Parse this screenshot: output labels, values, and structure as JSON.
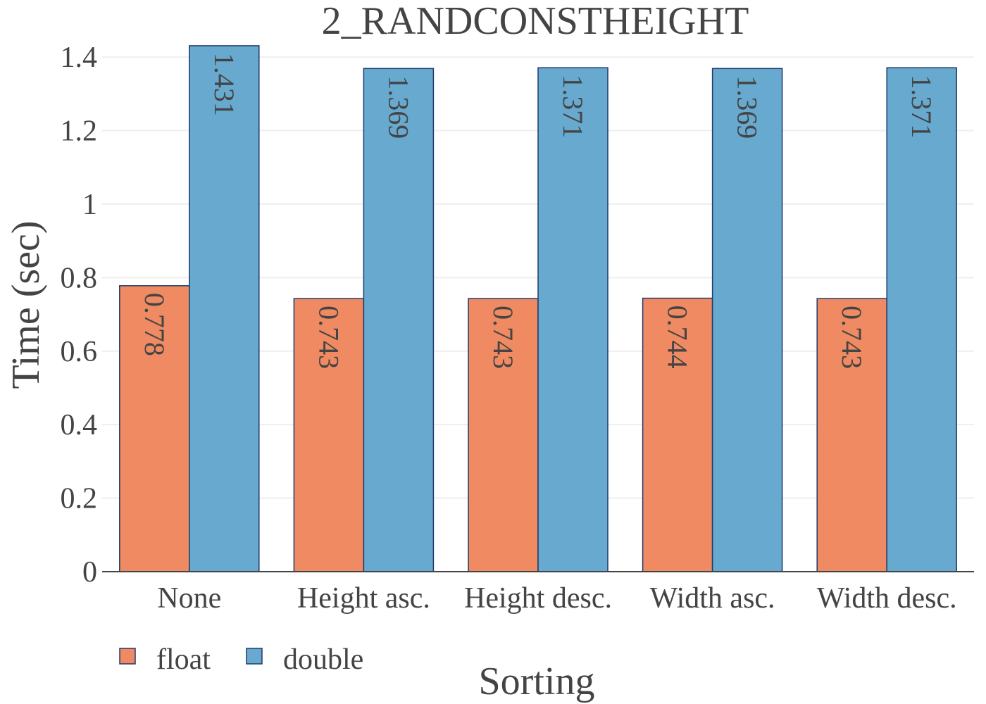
{
  "chart_data": {
    "type": "bar",
    "title": "2_RANDCONSTHEIGHT",
    "xlabel": "Sorting",
    "ylabel": "Time (sec)",
    "categories": [
      "None",
      "Height asc.",
      "Height desc.",
      "Width asc.",
      "Width desc."
    ],
    "series": [
      {
        "name": "float",
        "color": "#EF8A62",
        "values": [
          0.778,
          0.743,
          0.743,
          0.744,
          0.743
        ],
        "labels": [
          "0.778",
          "0.743",
          "0.743",
          "0.744",
          "0.743"
        ]
      },
      {
        "name": "double",
        "color": "#67A9CF",
        "values": [
          1.431,
          1.369,
          1.371,
          1.369,
          1.371
        ],
        "labels": [
          "1.431",
          "1.369",
          "1.371",
          "1.369",
          "1.371"
        ]
      }
    ],
    "ylim": [
      0,
      1.45
    ],
    "yticks": [
      0,
      0.2,
      0.4,
      0.6,
      0.8,
      1,
      1.2,
      1.4
    ],
    "ytick_labels": [
      "0",
      "0.2",
      "0.4",
      "0.6",
      "0.8",
      "1",
      "1.2",
      "1.4"
    ],
    "grid": true,
    "legend_position": "bottom-left",
    "bar_outline_color": "#1F3A6B",
    "data_label_orientation": "rotated-90-inside-top"
  }
}
